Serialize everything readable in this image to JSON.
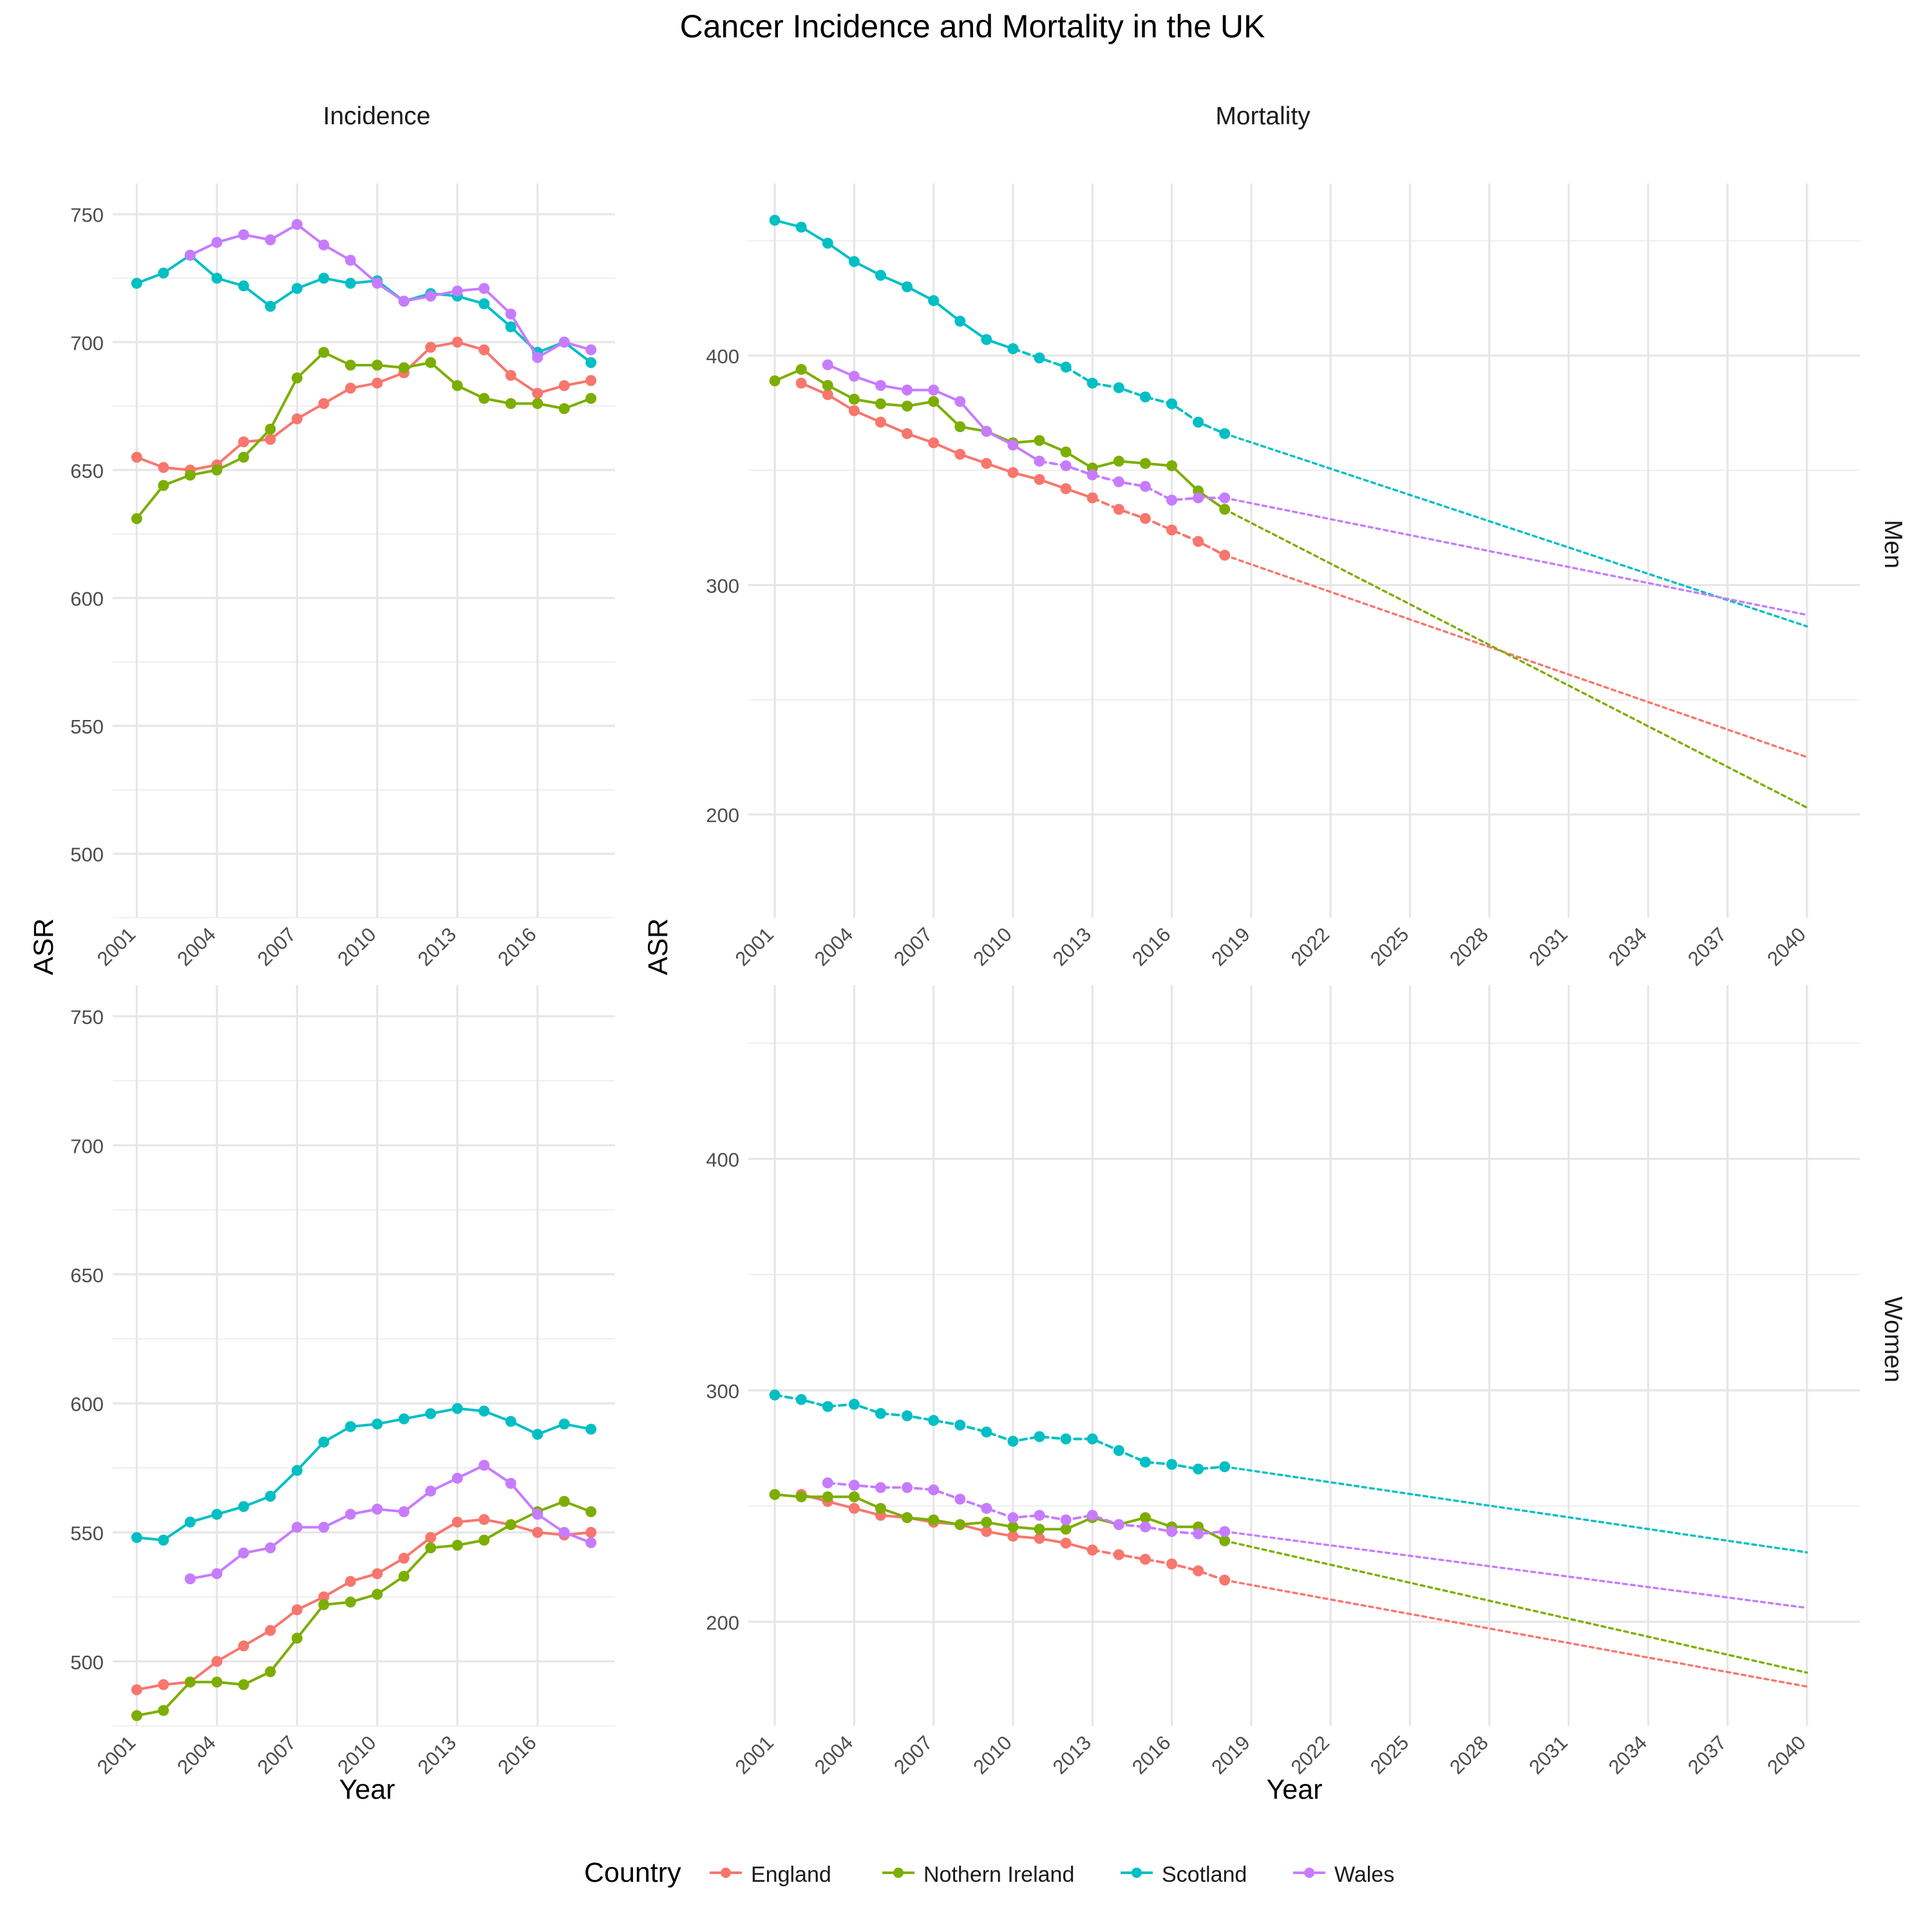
{
  "title": "Cancer Incidence and Mortality in the UK",
  "columns": [
    "Incidence",
    "Mortality"
  ],
  "rows": [
    "Men",
    "Women"
  ],
  "xlabel": "Year",
  "ylabel": "ASR",
  "legend": {
    "title": "Country",
    "position": "bottom",
    "items": [
      {
        "name": "England",
        "color": "#F8766D"
      },
      {
        "name": "Nothern Ireland",
        "color": "#7CAE00"
      },
      {
        "name": "Scotland",
        "color": "#00BFC4"
      },
      {
        "name": "Wales",
        "color": "#C77CFF"
      }
    ]
  },
  "chart_data": [
    {
      "type": "line",
      "panel": "Incidence",
      "facet_row": "Men",
      "x_ticks": [
        2001,
        2004,
        2007,
        2010,
        2013,
        2016
      ],
      "xlim": [
        2000.1,
        2018.9
      ],
      "y_ticks": [
        500,
        550,
        600,
        650,
        700,
        750
      ],
      "ylim": [
        475,
        762
      ],
      "grid": true,
      "series": [
        {
          "name": "England",
          "x": [
            2001,
            2002,
            2003,
            2004,
            2005,
            2006,
            2007,
            2008,
            2009,
            2010,
            2011,
            2012,
            2013,
            2014,
            2015,
            2016,
            2017,
            2018
          ],
          "y": [
            655,
            651,
            650,
            652,
            661,
            662,
            670,
            676,
            682,
            684,
            688,
            698,
            700,
            697,
            687,
            680,
            683,
            685
          ]
        },
        {
          "name": "Nothern Ireland",
          "x": [
            2001,
            2002,
            2003,
            2004,
            2005,
            2006,
            2007,
            2008,
            2009,
            2010,
            2011,
            2012,
            2013,
            2014,
            2015,
            2016,
            2017,
            2018
          ],
          "y": [
            631,
            644,
            648,
            650,
            655,
            666,
            686,
            696,
            691,
            691,
            690,
            692,
            683,
            678,
            676,
            676,
            674,
            678
          ]
        },
        {
          "name": "Scotland",
          "x": [
            2001,
            2002,
            2003,
            2004,
            2005,
            2006,
            2007,
            2008,
            2009,
            2010,
            2011,
            2012,
            2013,
            2014,
            2015,
            2016,
            2017,
            2018
          ],
          "y": [
            723,
            727,
            734,
            725,
            722,
            714,
            721,
            725,
            723,
            724,
            716,
            719,
            718,
            715,
            706,
            696,
            700,
            692
          ]
        },
        {
          "name": "Wales",
          "x": [
            2003,
            2004,
            2005,
            2006,
            2007,
            2008,
            2009,
            2010,
            2011,
            2012,
            2013,
            2014,
            2015,
            2016,
            2017,
            2018
          ],
          "y": [
            734,
            739,
            742,
            740,
            746,
            738,
            732,
            723,
            716,
            718,
            720,
            721,
            711,
            694,
            700,
            697
          ]
        }
      ]
    },
    {
      "type": "line",
      "panel": "Mortality",
      "facet_row": "Men",
      "x_ticks": [
        2001,
        2004,
        2007,
        2010,
        2013,
        2016,
        2019,
        2022,
        2025,
        2028,
        2031,
        2034,
        2037,
        2040
      ],
      "xlim": [
        2000.0,
        2042.0
      ],
      "y_ticks": [
        200,
        300,
        400
      ],
      "ylim": [
        155,
        475
      ],
      "grid": true,
      "series": [
        {
          "name": "England",
          "x": [
            2002,
            2003,
            2004,
            2005,
            2006,
            2007,
            2008,
            2009,
            2010,
            2011,
            2012,
            2013
          ],
          "y": [
            388,
            383,
            376,
            371,
            366,
            362,
            357,
            353,
            349,
            346,
            342,
            338
          ],
          "line_style": "solid"
        },
        {
          "name": "England",
          "x": [
            2013,
            2014,
            2015,
            2016,
            2017,
            2018
          ],
          "y": [
            338,
            333,
            329,
            324,
            319,
            313
          ],
          "line_style": "dashed"
        },
        {
          "name": "England",
          "x": [
            2018,
            2040
          ],
          "y": [
            313,
            225
          ],
          "line_style": "dotted",
          "markers": false
        },
        {
          "name": "Nothern Ireland",
          "x": [
            2001,
            2002,
            2003,
            2004,
            2005,
            2006,
            2007,
            2008,
            2009,
            2010,
            2011,
            2012,
            2013,
            2014,
            2015,
            2016,
            2017,
            2018
          ],
          "y": [
            389,
            394,
            387,
            381,
            379,
            378,
            380,
            369,
            367,
            362,
            363,
            358,
            351,
            354,
            353,
            352,
            341,
            333
          ],
          "line_style": "solid"
        },
        {
          "name": "Nothern Ireland",
          "x": [
            2018,
            2040
          ],
          "y": [
            333,
            203
          ],
          "line_style": "dotted",
          "markers": false
        },
        {
          "name": "Scotland",
          "x": [
            2001,
            2002,
            2003,
            2004,
            2005,
            2006,
            2007,
            2008,
            2009,
            2010
          ],
          "y": [
            459,
            456,
            449,
            441,
            435,
            430,
            424,
            415,
            407,
            403
          ],
          "line_style": "solid"
        },
        {
          "name": "Scotland",
          "x": [
            2010,
            2011,
            2012,
            2013,
            2014,
            2015,
            2016,
            2017,
            2018
          ],
          "y": [
            403,
            399,
            395,
            388,
            386,
            382,
            379,
            371,
            366
          ],
          "line_style": "dashed"
        },
        {
          "name": "Scotland",
          "x": [
            2018,
            2040
          ],
          "y": [
            366,
            282
          ],
          "line_style": "dotted",
          "markers": false
        },
        {
          "name": "Wales",
          "x": [
            2003,
            2004,
            2005,
            2006,
            2007,
            2008,
            2009,
            2010,
            2011
          ],
          "y": [
            396,
            391,
            387,
            385,
            385,
            380,
            367,
            361,
            354
          ],
          "line_style": "solid"
        },
        {
          "name": "Wales",
          "x": [
            2011,
            2012,
            2013,
            2014,
            2015,
            2016,
            2017,
            2018
          ],
          "y": [
            354,
            352,
            348,
            345,
            343,
            337,
            338,
            338
          ],
          "line_style": "dashed"
        },
        {
          "name": "Wales",
          "x": [
            2018,
            2040
          ],
          "y": [
            338,
            287
          ],
          "line_style": "dotted",
          "markers": false
        }
      ]
    },
    {
      "type": "line",
      "panel": "Incidence",
      "facet_row": "Women",
      "x_ticks": [
        2001,
        2004,
        2007,
        2010,
        2013,
        2016
      ],
      "xlim": [
        2000.1,
        2018.9
      ],
      "y_ticks": [
        500,
        550,
        600,
        650,
        700,
        750
      ],
      "ylim": [
        475,
        762
      ],
      "grid": true,
      "series": [
        {
          "name": "England",
          "x": [
            2001,
            2002,
            2003,
            2004,
            2005,
            2006,
            2007,
            2008,
            2009,
            2010,
            2011,
            2012,
            2013,
            2014,
            2015,
            2016,
            2017,
            2018
          ],
          "y": [
            489,
            491,
            492,
            500,
            506,
            512,
            520,
            525,
            531,
            534,
            540,
            548,
            554,
            555,
            553,
            550,
            549,
            550
          ]
        },
        {
          "name": "Nothern Ireland",
          "x": [
            2001,
            2002,
            2003,
            2004,
            2005,
            2006,
            2007,
            2008,
            2009,
            2010,
            2011,
            2012,
            2013,
            2014,
            2015,
            2016,
            2017,
            2018
          ],
          "y": [
            479,
            481,
            492,
            492,
            491,
            496,
            509,
            522,
            523,
            526,
            533,
            544,
            545,
            547,
            553,
            558,
            562,
            558
          ]
        },
        {
          "name": "Scotland",
          "x": [
            2001,
            2002,
            2003,
            2004,
            2005,
            2006,
            2007,
            2008,
            2009,
            2010,
            2011,
            2012,
            2013,
            2014,
            2015,
            2016,
            2017,
            2018
          ],
          "y": [
            548,
            547,
            554,
            557,
            560,
            564,
            574,
            585,
            591,
            592,
            594,
            596,
            598,
            597,
            593,
            588,
            592,
            590
          ]
        },
        {
          "name": "Wales",
          "x": [
            2003,
            2004,
            2005,
            2006,
            2007,
            2008,
            2009,
            2010,
            2011,
            2012,
            2013,
            2014,
            2015,
            2016,
            2017,
            2018
          ],
          "y": [
            532,
            534,
            542,
            544,
            552,
            552,
            557,
            559,
            558,
            566,
            571,
            576,
            569,
            557,
            550,
            546
          ]
        }
      ]
    },
    {
      "type": "line",
      "panel": "Mortality",
      "facet_row": "Women",
      "x_ticks": [
        2001,
        2004,
        2007,
        2010,
        2013,
        2016,
        2019,
        2022,
        2025,
        2028,
        2031,
        2034,
        2037,
        2040
      ],
      "xlim": [
        2000.0,
        2042.0
      ],
      "y_ticks": [
        200,
        300,
        400
      ],
      "ylim": [
        155,
        475
      ],
      "grid": true,
      "series": [
        {
          "name": "England",
          "x": [
            2002,
            2003,
            2004,
            2005,
            2006,
            2007,
            2008,
            2009,
            2010,
            2011,
            2012,
            2013
          ],
          "y": [
            255,
            252,
            249,
            246,
            245,
            243,
            242,
            239,
            237,
            236,
            234,
            231
          ],
          "line_style": "solid"
        },
        {
          "name": "England",
          "x": [
            2013,
            2014,
            2015,
            2016,
            2017,
            2018
          ],
          "y": [
            231,
            229,
            227,
            225,
            222,
            218
          ],
          "line_style": "dashed"
        },
        {
          "name": "England",
          "x": [
            2018,
            2040
          ],
          "y": [
            218,
            172
          ],
          "line_style": "dotted",
          "markers": false
        },
        {
          "name": "Nothern Ireland",
          "x": [
            2001,
            2002,
            2003,
            2004,
            2005,
            2006,
            2007,
            2008,
            2009,
            2010,
            2011,
            2012,
            2013,
            2014,
            2015,
            2016,
            2017,
            2018
          ],
          "y": [
            255,
            254,
            254,
            254,
            249,
            245,
            244,
            242,
            243,
            241,
            240,
            240,
            245,
            242,
            245,
            241,
            241,
            235
          ],
          "line_style": "solid"
        },
        {
          "name": "Nothern Ireland",
          "x": [
            2018,
            2040
          ],
          "y": [
            235,
            178
          ],
          "line_style": "dotted",
          "markers": false
        },
        {
          "name": "Scotland",
          "x": [
            2001,
            2002,
            2003,
            2004,
            2005,
            2006,
            2007,
            2008,
            2009,
            2010,
            2011,
            2012,
            2013,
            2014,
            2015,
            2016,
            2017,
            2018
          ],
          "y": [
            298,
            296,
            293,
            294,
            290,
            289,
            287,
            285,
            282,
            278,
            280,
            279,
            279,
            274,
            269,
            268,
            266,
            267
          ],
          "line_style": "dashed"
        },
        {
          "name": "Scotland",
          "x": [
            2018,
            2040
          ],
          "y": [
            267,
            230
          ],
          "line_style": "dotted",
          "markers": false
        },
        {
          "name": "Wales",
          "x": [
            2003,
            2004,
            2005,
            2006,
            2007,
            2008,
            2009,
            2010,
            2011,
            2012,
            2013,
            2014,
            2015,
            2016,
            2017,
            2018
          ],
          "y": [
            260,
            259,
            258,
            258,
            257,
            253,
            249,
            245,
            246,
            244,
            246,
            242,
            241,
            239,
            238,
            239
          ],
          "line_style": "dashed"
        },
        {
          "name": "Wales",
          "x": [
            2018,
            2040
          ],
          "y": [
            239,
            206
          ],
          "line_style": "dotted",
          "markers": false
        }
      ]
    }
  ]
}
